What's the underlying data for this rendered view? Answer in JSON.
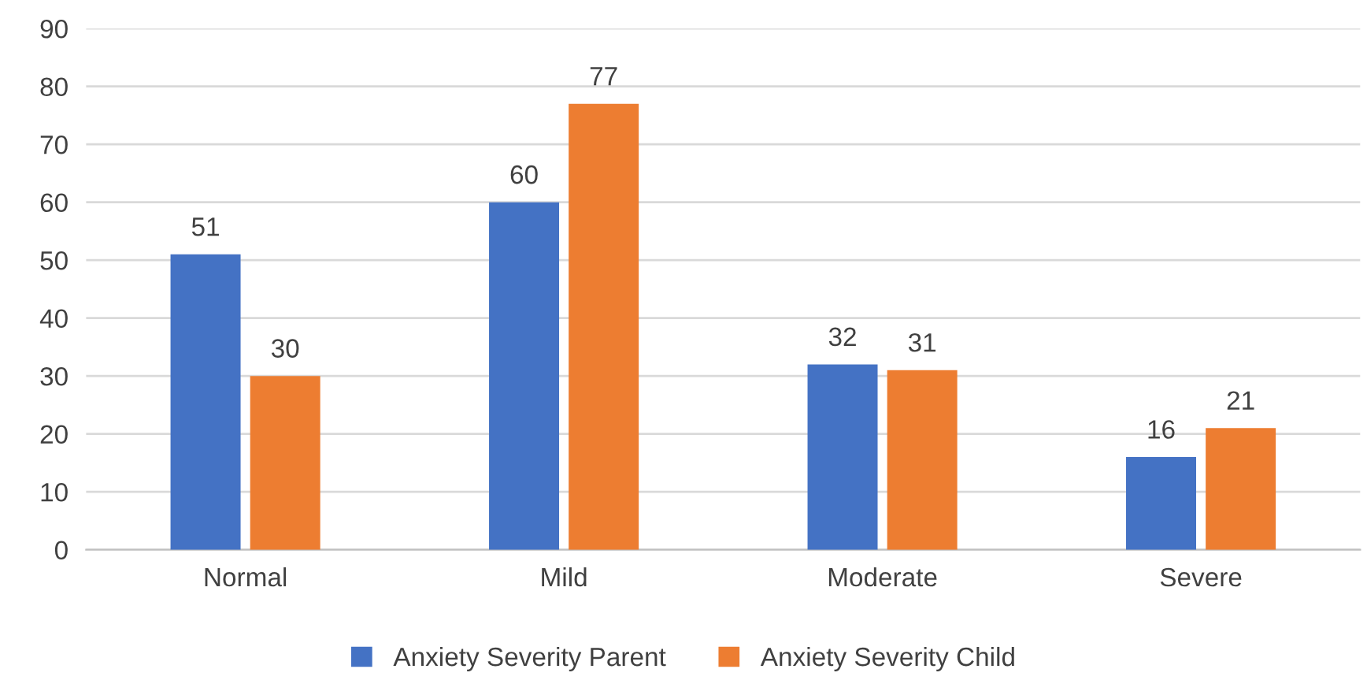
{
  "chart_data": {
    "type": "bar",
    "categories": [
      "Normal",
      "Mild",
      "Moderate",
      "Severe"
    ],
    "series": [
      {
        "name": "Anxiety Severity Parent",
        "color": "#4472c4",
        "values": [
          51,
          60,
          32,
          16
        ]
      },
      {
        "name": "Anxiety Severity Child",
        "color": "#ed7d31",
        "values": [
          30,
          77,
          31,
          21
        ]
      }
    ],
    "ylim": [
      0,
      90
    ],
    "yticks": [
      0,
      10,
      20,
      30,
      40,
      50,
      60,
      70,
      80,
      90
    ],
    "grid": "y",
    "legend": "bottom",
    "data_labels": true
  }
}
